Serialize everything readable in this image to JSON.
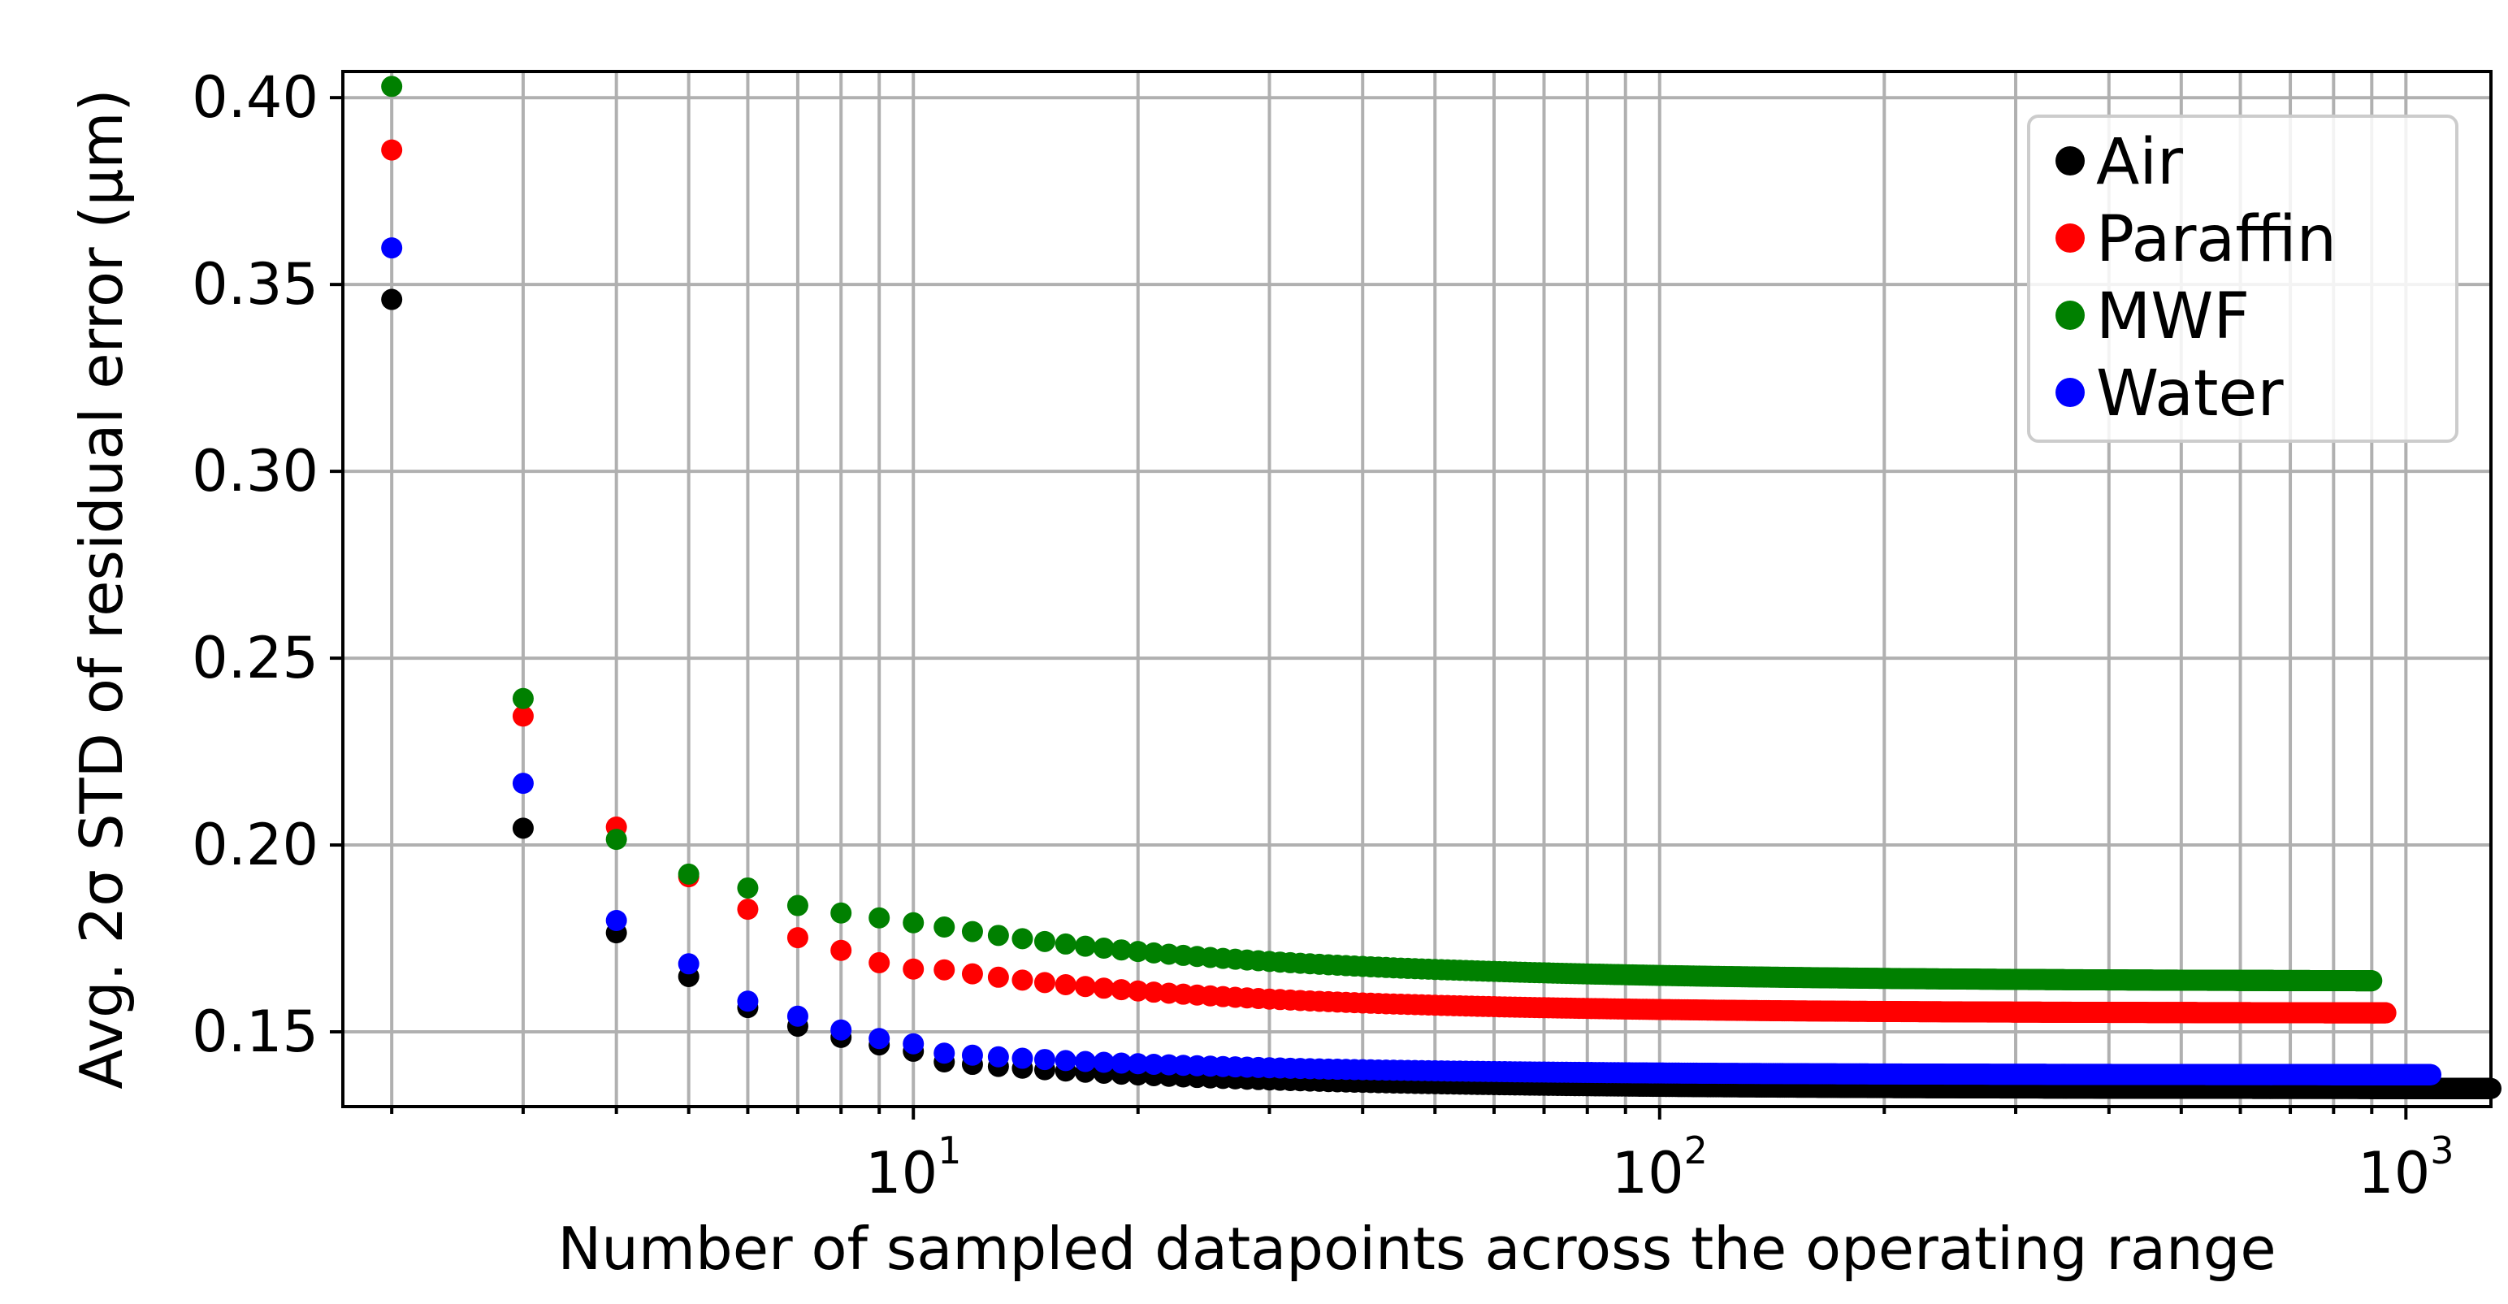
{
  "chart_data": {
    "type": "scatter",
    "xlabel": "Number of sampled datapoints across the operating range",
    "ylabel": "Avg. 2σ STD of residual error (μm)",
    "xscale": "log",
    "xlim": [
      1.72,
      1300
    ],
    "ylim": [
      0.13,
      0.407
    ],
    "grid": true,
    "legend_position": "top-right",
    "x_ticks": [
      {
        "value": 10,
        "base": "10",
        "exp": "1"
      },
      {
        "value": 100,
        "base": "10",
        "exp": "2"
      },
      {
        "value": 1000,
        "base": "10",
        "exp": "3"
      }
    ],
    "y_ticks": [
      {
        "value": 0.15,
        "label": "0.15"
      },
      {
        "value": 0.2,
        "label": "0.20"
      },
      {
        "value": 0.25,
        "label": "0.25"
      },
      {
        "value": 0.3,
        "label": "0.30"
      },
      {
        "value": 0.35,
        "label": "0.35"
      },
      {
        "value": 0.4,
        "label": "0.40"
      }
    ],
    "series": [
      {
        "name": "Air",
        "color": "#000000",
        "x_max": 1300,
        "points": [
          [
            2,
            0.346
          ],
          [
            3,
            0.2045
          ],
          [
            4,
            0.1765
          ],
          [
            5,
            0.1648
          ],
          [
            6,
            0.1565
          ],
          [
            7,
            0.1515
          ],
          [
            8,
            0.1485
          ],
          [
            9,
            0.1465
          ],
          [
            10,
            0.1448
          ]
        ],
        "curve": {
          "a": 0.1348,
          "b": 0.105,
          "c": 1.12
        }
      },
      {
        "name": "Paraffin",
        "color": "#ff0000",
        "x_max": 940,
        "points": [
          [
            2,
            0.386
          ],
          [
            3,
            0.2345
          ],
          [
            4,
            0.2048
          ],
          [
            5,
            0.1915
          ],
          [
            6,
            0.1828
          ],
          [
            7,
            0.1752
          ],
          [
            8,
            0.1718
          ],
          [
            9,
            0.1685
          ],
          [
            10,
            0.1668
          ]
        ],
        "curve": {
          "a": 0.155,
          "b": 0.17,
          "c": 1.12
        }
      },
      {
        "name": "MWF",
        "color": "#008000",
        "x_max": 900,
        "points": [
          [
            2,
            0.403
          ],
          [
            3,
            0.2392
          ],
          [
            4,
            0.2015
          ],
          [
            5,
            0.1922
          ],
          [
            6,
            0.1885
          ],
          [
            7,
            0.1838
          ],
          [
            8,
            0.1818
          ],
          [
            9,
            0.1805
          ],
          [
            10,
            0.1792
          ]
        ],
        "curve": {
          "a": 0.1635,
          "b": 0.16,
          "c": 1.0
        }
      },
      {
        "name": "Water",
        "color": "#0000ff",
        "x_max": 1080,
        "points": [
          [
            2,
            0.3598
          ],
          [
            3,
            0.2165
          ],
          [
            4,
            0.1798
          ],
          [
            5,
            0.1682
          ],
          [
            6,
            0.1582
          ],
          [
            7,
            0.1542
          ],
          [
            8,
            0.1505
          ],
          [
            9,
            0.1482
          ],
          [
            10,
            0.1468
          ]
        ],
        "curve": {
          "a": 0.1385,
          "b": 0.085,
          "c": 1.12
        }
      }
    ]
  }
}
